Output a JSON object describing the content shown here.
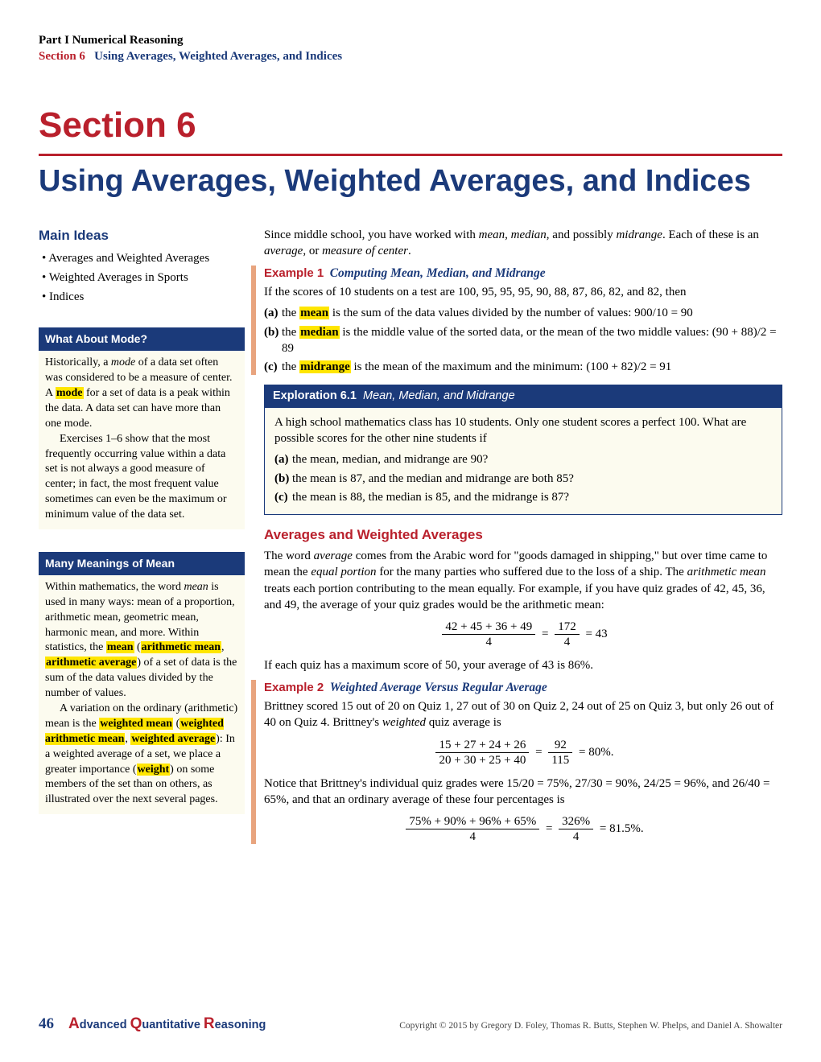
{
  "header": {
    "part": "Part I    Numerical Reasoning",
    "section_label": "Section 6",
    "section_title": "Using Averages, Weighted Averages, and Indices"
  },
  "title": {
    "section_num": "Section 6",
    "text": "Using Averages, Weighted Averages, and Indices"
  },
  "main_ideas": {
    "heading": "Main Ideas",
    "items": [
      "Averages and Weighted Averages",
      "Weighted Averages in Sports",
      "Indices"
    ]
  },
  "sidebar1": {
    "title": "What About Mode?",
    "p1a": "Historically, a ",
    "p1b": "mode",
    "p1c": " of a data set often was considered to be a measure of center. A ",
    "p1d": "mode",
    "p1e": " for a set of data is a peak within the data. A data set can have more than one mode.",
    "p2": "Exercises 1–6 show that the most frequently occurring value within a data set is not always a good measure of center; in fact, the most frequent value sometimes can even be the maximum or minimum value of the data set."
  },
  "sidebar2": {
    "title": "Many Meanings of Mean",
    "p1a": "Within mathematics, the word ",
    "p1b": "mean",
    "p1c": " is used in many ways: mean of a proportion, arithmetic mean, geometric mean, harmonic mean, and more. Within statistics, the ",
    "p1d": "mean",
    "p1e": " (",
    "p1f": "arithmetic mean",
    "p1g": ", ",
    "p1h": "arithmetic average",
    "p1i": ") of a set of data is the sum of the data values divided by the number of values.",
    "p2a": "A variation on the ordinary (arithmetic) mean is the ",
    "p2b": "weighted mean",
    "p2c": " (",
    "p2d": "weighted arithmetic mean",
    "p2e": ", ",
    "p2f": "weighted average",
    "p2g": "): In a weighted average of a set, we place a greater importance (",
    "p2h": "weight",
    "p2i": ") on some members of the set than on others, as illustrated over the next several pages."
  },
  "intro": {
    "a": "Since middle school, you have worked with ",
    "b": "mean",
    "c": ", ",
    "d": "median",
    "e": ", and possibly ",
    "f": "midrange",
    "g": ". Each of these is an ",
    "h": "average",
    "i": ", or ",
    "j": "measure of center",
    "k": "."
  },
  "ex1": {
    "num": "Example 1",
    "title": "Computing Mean, Median, and Midrange",
    "lead": "If the scores of 10 students on a test are 100, 95, 95, 95, 90, 88, 87, 86, 82, and 82, then",
    "a_pre": "the ",
    "a_hl": "mean",
    "a_post": " is the sum of the data values divided by the number of values: 900/10 = 90",
    "b_pre": "the ",
    "b_hl": "median",
    "b_post": " is the middle value of the sorted data, or the mean of the two middle values: (90 + 88)/2 = 89",
    "c_pre": "the ",
    "c_hl": "midrange",
    "c_post": " is the mean of the maximum and the minimum: (100 + 82)/2 = 91"
  },
  "explore": {
    "num": "Exploration 6.1",
    "title": "Mean, Median, and Midrange",
    "lead": "A high school mathematics class has 10 students. Only one student scores a perfect 100. What are possible scores for the other nine students if",
    "a": "the mean, median, and midrange are 90?",
    "b": "the mean is 87, and the median and midrange are both 85?",
    "c": "the mean is 88, the median is 85, and the midrange is 87?"
  },
  "sub1": {
    "heading": "Averages and Weighted Averages",
    "p1a": "The word ",
    "p1b": "average",
    "p1c": " comes from the Arabic word for \"goods damaged in shipping,\" but over time came to mean the ",
    "p1d": "equal portion",
    "p1e": " for the many parties who suffered due to the loss of a ship. The ",
    "p1f": "arithmetic mean",
    "p1g": " treats each portion contributing to the mean equally. For example, if you have quiz grades of 42, 45, 36, and 49, the average of your quiz grades would be the arithmetic mean:",
    "math_num": "42 + 45 + 36 + 49",
    "math_den": "4",
    "math_mid": "172",
    "math_res": "= 43",
    "p2": "If each quiz has a maximum score of 50, your average of 43 is 86%."
  },
  "ex2": {
    "num": "Example 2",
    "title": "Weighted Average Versus Regular Average",
    "p1a": "Brittney scored 15 out of 20 on Quiz 1, 27 out of 30 on Quiz 2, 24 out of 25 on Quiz 3, but only 26 out of 40 on Quiz 4. Brittney's ",
    "p1b": "weighted",
    "p1c": " quiz average is",
    "m1_num": "15 + 27 + 24 + 26",
    "m1_den": "20 + 30 + 25 + 40",
    "m1_mid_num": "92",
    "m1_mid_den": "115",
    "m1_res": "= 80%.",
    "p2": "Notice that Brittney's individual quiz grades were 15/20 = 75%, 27/30 = 90%, 24/25 = 96%, and 26/40 = 65%, and that an ordinary average of these four percentages is",
    "m2_num": "75% + 90% + 96% + 65%",
    "m2_den": "4",
    "m2_mid_num": "326%",
    "m2_mid_den": "4",
    "m2_res": "= 81.5%."
  },
  "footer": {
    "page": "46",
    "book_a": "A",
    "book_a2": "dvanced ",
    "book_q": "Q",
    "book_q2": "uantitative ",
    "book_r": "R",
    "book_r2": "easoning",
    "copy": "Copyright © 2015 by Gregory D. Foley, Thomas R. Butts, Stephen W. Phelps, and Daniel A. Showalter"
  },
  "colors": {
    "red": "#b9202c",
    "blue": "#1b3a7a",
    "cream": "#fcfbef",
    "orange": "#e8a47e",
    "highlight": "#ffe600"
  }
}
